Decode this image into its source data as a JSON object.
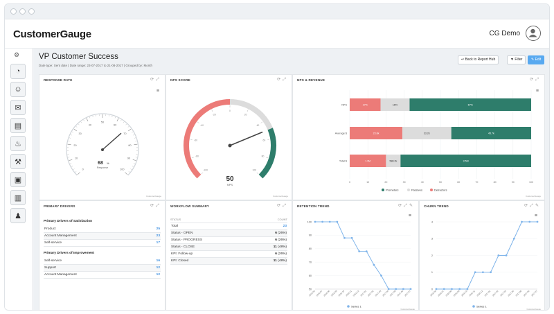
{
  "app": {
    "logo": "CustomerGauge",
    "user": "CG Demo"
  },
  "page": {
    "title": "VP Customer Success",
    "date_info": "Date type: Sent date | Date range: 23-07-2017 to 21-08-2017 | Grouped by: Month"
  },
  "toolbar": {
    "back": "Back to Report Hub",
    "filter": "Filter",
    "edit": "Edit"
  },
  "sidebar": {
    "items": [
      "gear-icon",
      "gauge-icon",
      "smiley-icon",
      "mail-icon",
      "document-icon",
      "fire-icon",
      "wrench-icon",
      "image-icon",
      "report-icon",
      "person-icon"
    ]
  },
  "response_rate": {
    "title": "RESPONSE RATE",
    "value": "68",
    "unit": "%",
    "label": "Response",
    "ticks": [
      "0",
      "10",
      "20",
      "30",
      "40",
      "50",
      "60",
      "70",
      "80",
      "90",
      "100"
    ],
    "footer": "CustomerGauge"
  },
  "nps_score": {
    "title": "NPS SCORE",
    "value": "50",
    "label": "NPS",
    "ticks": [
      "-100",
      "-80",
      "-60",
      "-40",
      "-20",
      "0",
      "20",
      "40",
      "60",
      "80",
      "100"
    ],
    "footer": "CustomerGauge"
  },
  "nps_revenue": {
    "title": "NPS & REVENUE",
    "rows": [
      {
        "label": "NPS",
        "promoters": "67%",
        "passives": "16%",
        "detractors": "17%"
      },
      {
        "label": "Average $",
        "promoters": "45.7k",
        "passives": "33.2k",
        "detractors": "23.6k"
      },
      {
        "label": "Total $",
        "promoters": "3.5M",
        "passives": "588.2k",
        "detractors": "1.3M"
      }
    ],
    "xticks": [
      "0",
      "10",
      "20",
      "30",
      "40",
      "50",
      "60",
      "70",
      "80",
      "90",
      "100"
    ],
    "legend": {
      "promoters": "Promoters",
      "passives": "Passives",
      "detractors": "Detractors"
    },
    "footer": "CustomerGauge"
  },
  "drivers": {
    "title": "PRIMARY DRIVERS",
    "sat_title": "Primary Drivers of Satisfaction",
    "sat": [
      {
        "label": "Product",
        "value": "25"
      },
      {
        "label": "Account Management",
        "value": "23"
      },
      {
        "label": "Self-service",
        "value": "17"
      }
    ],
    "imp_title": "Primary Drivers of Improvement",
    "imp": [
      {
        "label": "Self-service",
        "value": "16"
      },
      {
        "label": "Support",
        "value": "12"
      },
      {
        "label": "Account Management",
        "value": "12"
      }
    ]
  },
  "workflow": {
    "title": "WORKFLOW SUMMARY",
    "col_status": "STATUS",
    "col_count": "COUNT",
    "rows": [
      {
        "status": "Total",
        "count": "23",
        "pct": ""
      },
      {
        "status": "Status - OPEN",
        "count": "6",
        "pct": "(26%)"
      },
      {
        "status": "Status - PROGRESS",
        "count": "6",
        "pct": "(26%)"
      },
      {
        "status": "Status - CLOSE",
        "count": "11",
        "pct": "(48%)"
      },
      {
        "status": "KPI: Follow-up",
        "count": "6",
        "pct": "(26%)"
      },
      {
        "status": "KPI: Closed",
        "count": "11",
        "pct": "(48%)"
      }
    ]
  },
  "retention": {
    "title": "RETENTION TREND",
    "series_name": "Series 1",
    "footer": "CustomerGauge",
    "yticks": [
      "100",
      "90",
      "80",
      "70",
      "60",
      "50"
    ],
    "xlabels": [
      "2016-06",
      "2016-07",
      "2016-08",
      "2016-09",
      "2016-10",
      "2016-11",
      "2016-12",
      "2017-01",
      "2017-02",
      "2017-03",
      "2017-04",
      "2017-05",
      "2017-06",
      "2017-07"
    ]
  },
  "churn": {
    "title": "CHURN TREND",
    "series_name": "Series 1",
    "footer": "CustomerGauge",
    "yticks": [
      "4",
      "3",
      "2",
      "1",
      "0"
    ],
    "xlabels": [
      "2016-06",
      "2016-07",
      "2016-08",
      "2016-09",
      "2016-10",
      "2016-11",
      "2016-12",
      "2017-01",
      "2017-02",
      "2017-03",
      "2017-04",
      "2017-05",
      "2017-06",
      "2017-07"
    ]
  },
  "chart_data": [
    {
      "type": "gauge",
      "title": "RESPONSE RATE",
      "value": 68,
      "range": [
        0,
        100
      ],
      "unit": "%"
    },
    {
      "type": "gauge",
      "title": "NPS SCORE",
      "value": 50,
      "range": [
        -100,
        100
      ]
    },
    {
      "type": "bar",
      "title": "NPS & REVENUE",
      "stacked": true,
      "orientation": "horizontal",
      "categories": [
        "NPS",
        "Average $",
        "Total $"
      ],
      "series": [
        {
          "name": "Detractors",
          "values": [
            17,
            29,
            20
          ]
        },
        {
          "name": "Passives",
          "values": [
            16,
            27,
            8
          ]
        },
        {
          "name": "Promoters",
          "values": [
            67,
            44,
            72
          ]
        }
      ],
      "xlim": [
        0,
        100
      ],
      "legend": "bottom"
    },
    {
      "type": "line",
      "title": "RETENTION TREND",
      "x": [
        "2016-06",
        "2016-07",
        "2016-08",
        "2016-09",
        "2016-10",
        "2016-11",
        "2016-12",
        "2017-01",
        "2017-02",
        "2017-03",
        "2017-04",
        "2017-05",
        "2017-06",
        "2017-07"
      ],
      "series": [
        {
          "name": "Series 1",
          "values": [
            100,
            100,
            100,
            100,
            88,
            88,
            78,
            78,
            68,
            60,
            50,
            50,
            50,
            50
          ]
        }
      ],
      "ylim": [
        50,
        100
      ],
      "legend": "bottom"
    },
    {
      "type": "line",
      "title": "CHURN TREND",
      "x": [
        "2016-06",
        "2016-07",
        "2016-08",
        "2016-09",
        "2016-10",
        "2016-11",
        "2016-12",
        "2017-01",
        "2017-02",
        "2017-03",
        "2017-04",
        "2017-05",
        "2017-06",
        "2017-07"
      ],
      "series": [
        {
          "name": "Series 1",
          "values": [
            0,
            0,
            0,
            0,
            0,
            1,
            1,
            1,
            2,
            2,
            3,
            4,
            4,
            4
          ]
        }
      ],
      "ylim": [
        0,
        4
      ],
      "legend": "bottom"
    }
  ],
  "colors": {
    "accent": "#58a9f0",
    "promoter": "#2e7d6b",
    "passive": "#dcdcdc",
    "detractor": "#ec7b78",
    "line": "#7fb4ea"
  }
}
